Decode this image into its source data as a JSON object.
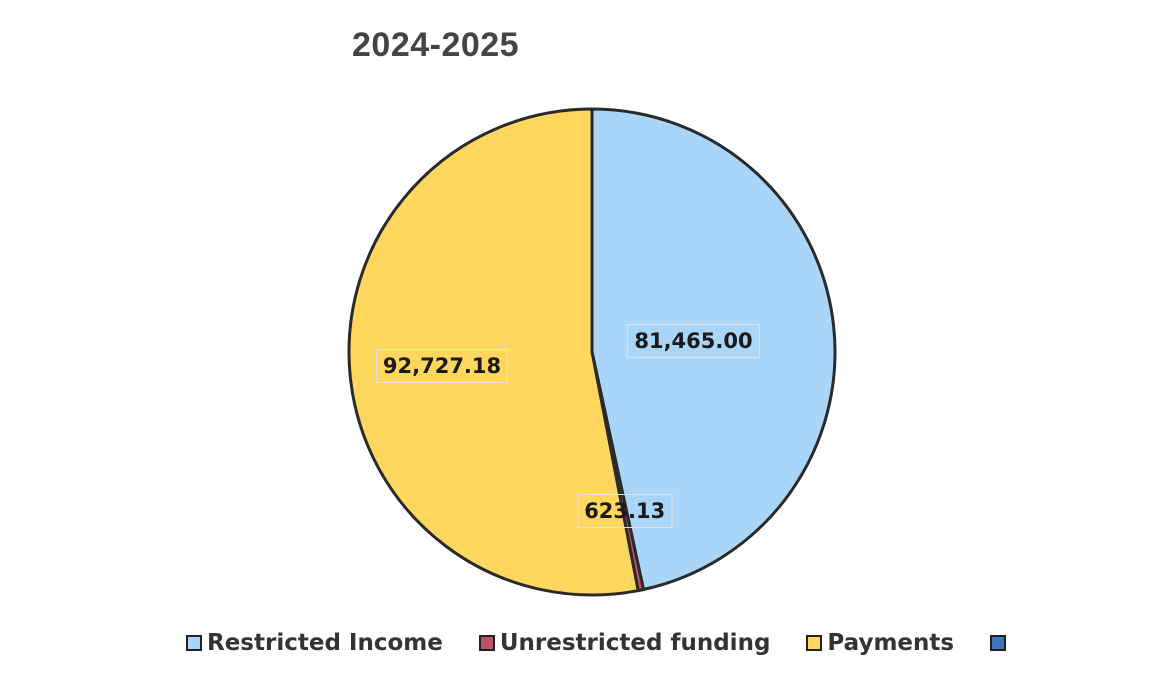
{
  "chart_data": {
    "type": "pie",
    "title": "2024-2025",
    "slices": [
      {
        "label": "Restricted Income",
        "value": 81465.0,
        "display": "81,465.00",
        "color": "#a9d6f8"
      },
      {
        "label": "Unrestricted funding",
        "value": 623.13,
        "display": "623.13",
        "color": "#c0506a"
      },
      {
        "label": "Payments",
        "value": 92727.18,
        "display": "92,727.18",
        "color": "#ffd65e"
      },
      {
        "label": "",
        "value": 0,
        "display": "",
        "color": "#3e74c0"
      }
    ],
    "legend_position": "bottom",
    "start_angle_deg": 0,
    "direction": "clockwise"
  }
}
